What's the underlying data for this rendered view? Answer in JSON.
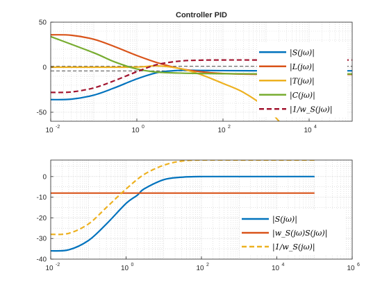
{
  "chart_data": [
    {
      "type": "line",
      "title": "Controller PID",
      "xscale": "log",
      "xlim": [
        0.01,
        100000
      ],
      "ylim": [
        -60,
        50
      ],
      "yticks": [
        50,
        0,
        -50
      ],
      "ytick_labels": [
        "50",
        "0",
        "-50"
      ],
      "xtick_base": "10",
      "xtick_exponents": [
        "-2",
        "0",
        "2",
        "4"
      ],
      "grid": "on (major + minor)",
      "legend_position": "right",
      "legend": [
        "|S(jω)|",
        "|L(jω)|",
        "|T(jω)|",
        "|C(jω)|",
        "|1/w_S(jω)|"
      ],
      "reference_lines": [
        -4.08,
        1.0
      ],
      "series": [
        {
          "name": "|S(jω)|",
          "color": "#0072BD",
          "style": "solid",
          "x": [
            0.01,
            0.03,
            0.1,
            0.3,
            1,
            3,
            10,
            30,
            100,
            1000,
            10000,
            100000
          ],
          "y": [
            -36,
            -35.5,
            -31,
            -23,
            -13,
            -6,
            -3.5,
            -3.6,
            -3.8,
            -4,
            -4,
            -4
          ]
        },
        {
          "name": "|L(jω)|",
          "color": "#D95319",
          "style": "solid",
          "x": [
            0.01,
            0.03,
            0.1,
            0.3,
            1,
            3,
            10,
            30,
            100,
            1000,
            10000,
            100000
          ],
          "y": [
            36,
            35.5,
            31,
            23,
            13,
            5,
            -1.5,
            -5,
            -7,
            -8,
            -8,
            -8
          ]
        },
        {
          "name": "|T(jω)|",
          "color": "#EDB120",
          "style": "solid",
          "x": [
            0.01,
            0.1,
            1,
            3,
            10,
            30,
            100,
            300,
            1000,
            2000
          ],
          "y": [
            0,
            0,
            0.2,
            1.5,
            -1.5,
            -8,
            -18,
            -28,
            -45,
            -60
          ]
        },
        {
          "name": "|C(jω)|",
          "color": "#77AC30",
          "style": "solid",
          "x": [
            0.01,
            0.1,
            0.3,
            1,
            3,
            10,
            30,
            100,
            1000,
            10000,
            100000
          ],
          "y": [
            34,
            16,
            6,
            -2,
            -5.5,
            -6.5,
            -7,
            -7.2,
            -7.4,
            -7.5,
            -7.5
          ]
        },
        {
          "name": "|1/w_S(jω)|",
          "color": "#A2142F",
          "style": "dashed",
          "x": [
            0.01,
            0.03,
            0.1,
            0.3,
            1,
            3,
            10,
            30,
            100,
            1000,
            10000,
            100000
          ],
          "y": [
            -28,
            -27.5,
            -23,
            -15,
            -5,
            3,
            6.8,
            7.8,
            8,
            8,
            8,
            8
          ]
        }
      ]
    },
    {
      "type": "line",
      "title": "",
      "xscale": "log",
      "xlim": [
        0.01,
        1000000
      ],
      "ylim": [
        -40,
        8
      ],
      "yticks": [
        0,
        -10,
        -20,
        -30,
        -40
      ],
      "ytick_labels": [
        "0",
        "-10",
        "-20",
        "-30",
        "-40"
      ],
      "xtick_base": "10",
      "xtick_exponents": [
        "-2",
        "0",
        "2",
        "4",
        "6"
      ],
      "grid": "on (major + minor)",
      "legend_position": "bottom-right",
      "legend": [
        "|S(jω)|",
        "|w_S(jω)S(jω)|",
        "|1/w_S(jω)|"
      ],
      "series": [
        {
          "name": "|S(jω)|",
          "color": "#0072BD",
          "style": "solid",
          "x": [
            0.01,
            0.03,
            0.1,
            0.3,
            1,
            2,
            3,
            10,
            30,
            100,
            1000,
            10000,
            100000
          ],
          "y": [
            -36,
            -35.5,
            -31,
            -23,
            -13,
            -9,
            -6,
            -1.5,
            -0.3,
            0,
            0,
            0,
            0
          ]
        },
        {
          "name": "|w_S(jω)S(jω)|",
          "color": "#D95319",
          "style": "solid",
          "x": [
            0.01,
            100000
          ],
          "y": [
            -8,
            -8
          ]
        },
        {
          "name": "|1/w_S(jω)|",
          "color": "#EDB120",
          "style": "dashed",
          "x": [
            0.01,
            0.03,
            0.1,
            0.3,
            1,
            3,
            10,
            30,
            100,
            1000,
            10000,
            100000
          ],
          "y": [
            -28,
            -27.5,
            -23,
            -15,
            -6,
            1,
            5.5,
            7.5,
            8,
            8,
            8,
            8
          ]
        }
      ]
    }
  ]
}
